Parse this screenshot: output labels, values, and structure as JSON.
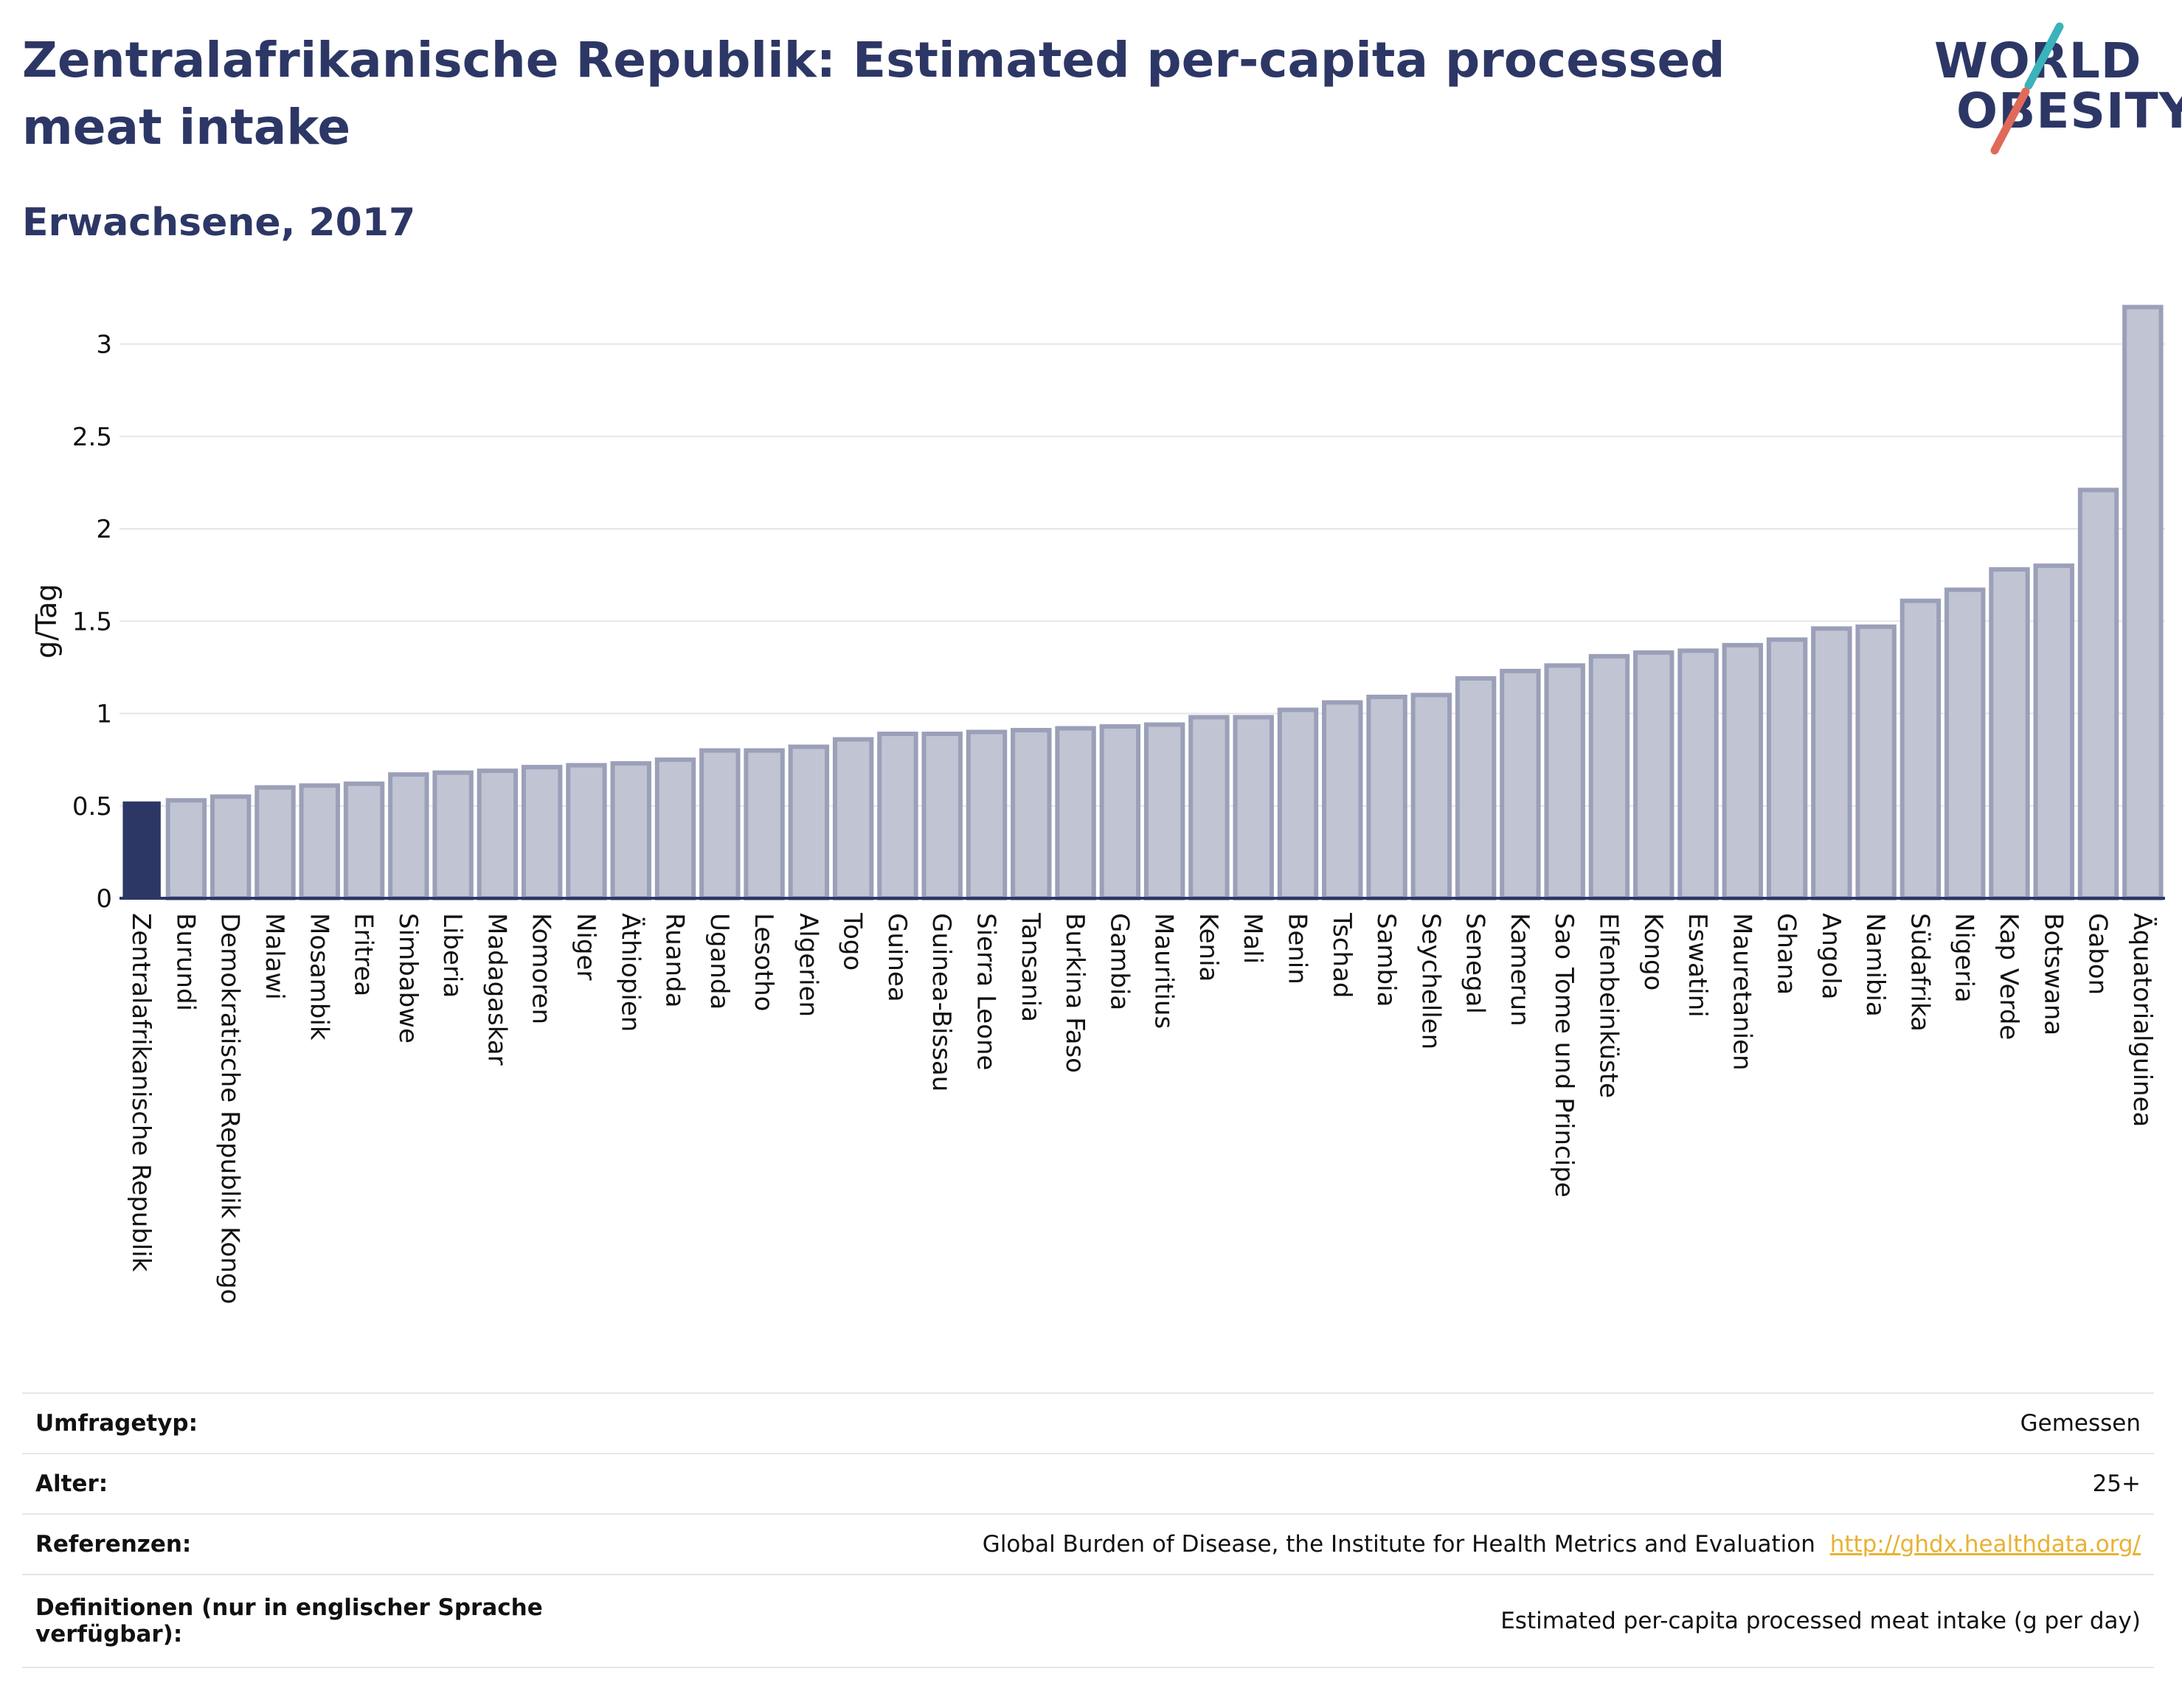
{
  "header": {
    "title": "Zentralafrikanische Republik: Estimated per-capita processed meat intake",
    "subtitle": "Erwachsene, 2017"
  },
  "logo": {
    "line1": "WORLD",
    "line2": "OBESITY",
    "slash_colors": [
      "#3ab3bb",
      "#e06a5a"
    ]
  },
  "colors": {
    "highlight": "#2d3766",
    "bar": "#c1c4d2",
    "bar_stroke": "#9ba0b9",
    "grid": "#e6e6e6",
    "axis": "#2d3766"
  },
  "chart_data": {
    "type": "bar",
    "title": "Zentralafrikanische Republik: Estimated per-capita processed meat intake",
    "subtitle": "Erwachsene, 2017",
    "ylabel": "g/Tag",
    "xlabel": "",
    "ylim": [
      0,
      3.3
    ],
    "yticks": [
      0,
      0.5,
      1,
      1.5,
      2,
      2.5,
      3
    ],
    "ytick_labels": [
      "0",
      "0.5",
      "1",
      "1.5",
      "2",
      "2.5",
      "3"
    ],
    "grid": true,
    "highlight_category": "Zentralafrikanische Republik",
    "categories": [
      "Zentralafrikanische Republik",
      "Burundi",
      "Demokratische Republik Kongo",
      "Malawi",
      "Mosambik",
      "Eritrea",
      "Simbabwe",
      "Liberia",
      "Madagaskar",
      "Komoren",
      "Niger",
      "Äthiopien",
      "Ruanda",
      "Uganda",
      "Lesotho",
      "Algerien",
      "Togo",
      "Guinea",
      "Guinea-Bissau",
      "Sierra Leone",
      "Tansania",
      "Burkina Faso",
      "Gambia",
      "Mauritius",
      "Kenia",
      "Mali",
      "Benin",
      "Tschad",
      "Sambia",
      "Seychellen",
      "Senegal",
      "Kamerun",
      "Sao Tome und Principe",
      "Elfenbeinküste",
      "Kongo",
      "Eswatini",
      "Mauretanien",
      "Ghana",
      "Angola",
      "Namibia",
      "Südafrika",
      "Nigeria",
      "Kap Verde",
      "Botswana",
      "Gabon",
      "Äquatorialguinea"
    ],
    "values": [
      0.52,
      0.53,
      0.55,
      0.6,
      0.61,
      0.62,
      0.67,
      0.68,
      0.69,
      0.71,
      0.72,
      0.73,
      0.75,
      0.8,
      0.8,
      0.82,
      0.86,
      0.89,
      0.89,
      0.9,
      0.91,
      0.92,
      0.93,
      0.94,
      0.98,
      0.98,
      1.02,
      1.06,
      1.09,
      1.1,
      1.19,
      1.23,
      1.26,
      1.31,
      1.33,
      1.34,
      1.37,
      1.4,
      1.46,
      1.47,
      1.61,
      1.67,
      1.78,
      1.8,
      2.21,
      3.2
    ]
  },
  "info": {
    "survey_label": "Umfragetyp:",
    "survey_value": "Gemessen",
    "age_label": "Alter:",
    "age_value": "25+",
    "ref_label": "Referenzen:",
    "ref_value": "Global Burden of Disease, the Institute for Health Metrics and Evaluation",
    "ref_link": "http://ghdx.healthdata.org/",
    "def_label": "Definitionen (nur in englischer Sprache verfügbar):",
    "def_value": "Estimated per-capita processed meat intake (g per day)"
  }
}
